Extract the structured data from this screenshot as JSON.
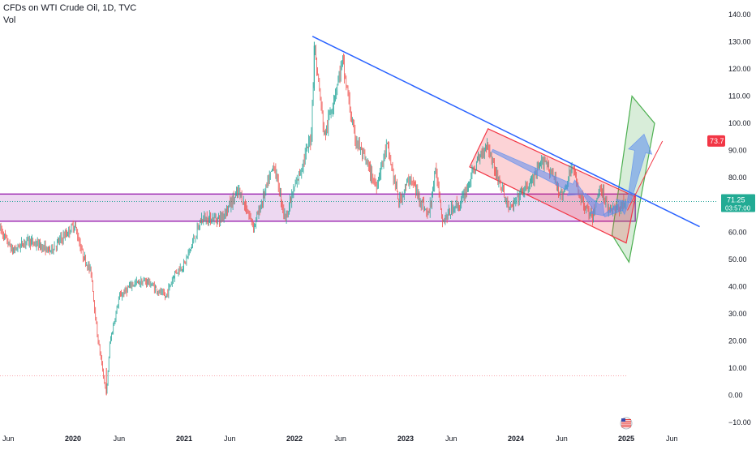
{
  "header": {
    "symbol": "CFDs on WTI Crude Oil, 1D, TVC",
    "volume_label": "Vol"
  },
  "price_tag": {
    "value": "71.25",
    "countdown": "03:57:00",
    "color": "#22ab94"
  },
  "target_tag": {
    "value": "73.7",
    "color": "#f23645"
  },
  "colors": {
    "up_candle": "#26a69a",
    "down_candle": "#ef5350",
    "trendline": "#2962ff",
    "support_zone": "#9c27b0",
    "channel": "#f23645",
    "projection_box": "#4caf50",
    "arrows": "#5b8def"
  },
  "chart_data": {
    "type": "candlestick",
    "title": "CFDs on WTI Crude Oil, 1D, TVC",
    "y_axis": {
      "position": "right",
      "ylim": [
        -10,
        140
      ],
      "ticks": [
        140,
        130,
        120,
        110,
        100,
        90,
        80,
        70,
        60,
        50,
        40,
        30,
        20,
        10,
        0,
        -10
      ],
      "tick_labels": [
        "140.00",
        "130.00",
        "120.00",
        "110.00",
        "100.00",
        "90.00",
        "80.00",
        "70.00",
        "60.00",
        "50.00",
        "40.00",
        "30.00",
        "20.00",
        "10.00",
        "0.00",
        "−10.00"
      ]
    },
    "x_axis": {
      "tick_labels": [
        "Jun",
        "2020",
        "Jun",
        "2021",
        "Jun",
        "2022",
        "Jun",
        "2023",
        "Jun",
        "2024",
        "Jun",
        "2025",
        "Jun"
      ],
      "tick_dates": [
        "2019-06-01",
        "2020-01-01",
        "2020-06-01",
        "2021-01-01",
        "2021-06-01",
        "2022-01-01",
        "2022-06-01",
        "2023-01-01",
        "2023-06-01",
        "2024-01-01",
        "2024-06-01",
        "2025-01-01",
        "2025-06-01"
      ],
      "bold_labels": [
        "2020",
        "2021",
        "2022",
        "2023",
        "2024",
        "2025"
      ]
    },
    "price_path": [
      [
        "2019-05-01",
        62
      ],
      [
        "2019-06-15",
        53
      ],
      [
        "2019-08-01",
        57
      ],
      [
        "2019-09-15",
        55
      ],
      [
        "2019-10-15",
        53
      ],
      [
        "2019-12-15",
        60
      ],
      [
        "2020-01-06",
        63
      ],
      [
        "2020-02-01",
        52
      ],
      [
        "2020-03-01",
        45
      ],
      [
        "2020-03-20",
        23
      ],
      [
        "2020-04-20",
        0
      ],
      [
        "2020-05-01",
        19
      ],
      [
        "2020-06-01",
        36
      ],
      [
        "2020-07-15",
        41
      ],
      [
        "2020-09-01",
        42
      ],
      [
        "2020-11-01",
        36
      ],
      [
        "2020-12-01",
        45
      ],
      [
        "2021-01-01",
        48
      ],
      [
        "2021-03-01",
        65
      ],
      [
        "2021-05-01",
        65
      ],
      [
        "2021-07-01",
        75
      ],
      [
        "2021-08-20",
        62
      ],
      [
        "2021-10-25",
        85
      ],
      [
        "2021-12-01",
        65
      ],
      [
        "2022-01-01",
        76
      ],
      [
        "2022-02-25",
        95
      ],
      [
        "2022-03-07",
        129
      ],
      [
        "2022-04-10",
        95
      ],
      [
        "2022-05-01",
        105
      ],
      [
        "2022-06-08",
        123
      ],
      [
        "2022-07-15",
        96
      ],
      [
        "2022-08-15",
        88
      ],
      [
        "2022-09-26",
        77
      ],
      [
        "2022-11-01",
        92
      ],
      [
        "2022-12-10",
        71
      ],
      [
        "2023-01-15",
        80
      ],
      [
        "2023-03-17",
        66
      ],
      [
        "2023-04-12",
        83
      ],
      [
        "2023-05-04",
        64
      ],
      [
        "2023-06-15",
        70
      ],
      [
        "2023-07-01",
        70
      ],
      [
        "2023-08-15",
        83
      ],
      [
        "2023-09-27",
        93
      ],
      [
        "2023-11-01",
        80
      ],
      [
        "2023-12-13",
        68
      ],
      [
        "2024-01-15",
        74
      ],
      [
        "2024-02-20",
        78
      ],
      [
        "2024-04-05",
        87
      ],
      [
        "2024-06-04",
        73
      ],
      [
        "2024-07-05",
        84
      ],
      [
        "2024-08-05",
        72
      ],
      [
        "2024-09-10",
        65
      ],
      [
        "2024-10-07",
        77
      ],
      [
        "2024-11-01",
        69
      ],
      [
        "2024-12-01",
        68
      ],
      [
        "2024-12-31",
        71.25
      ]
    ],
    "last_price": 71.25,
    "annotations": [
      {
        "type": "descending_trendline",
        "from": [
          "2022-03-01",
          132
        ],
        "to": [
          "2025-09-01",
          62
        ]
      },
      {
        "type": "horizontal_zone",
        "from_date": "2019-03-01",
        "to_date": "2025-01-31",
        "y_range": [
          64,
          74
        ]
      },
      {
        "type": "descending_channel",
        "corners": [
          [
            "2023-08-01",
            84
          ],
          [
            "2023-10-01",
            98
          ],
          [
            "2025-01-31",
            73
          ],
          [
            "2025-01-01",
            56
          ]
        ]
      },
      {
        "type": "projection_box",
        "corners": [
          [
            "2024-11-15",
            59
          ],
          [
            "2025-01-20",
            110
          ],
          [
            "2025-04-05",
            100
          ],
          [
            "2025-01-10",
            49
          ]
        ]
      },
      {
        "type": "arrow_path",
        "points": [
          [
            "2023-10-15",
            90
          ],
          [
            "2024-08-15",
            74
          ],
          [
            "2024-10-20",
            66
          ],
          [
            "2025-01-10",
            71
          ],
          [
            "2025-03-01",
            96
          ]
        ]
      },
      {
        "type": "target_line",
        "from": [
          "2025-01-05",
          68
        ],
        "to": [
          "2025-05-01",
          93.5
        ]
      }
    ]
  }
}
